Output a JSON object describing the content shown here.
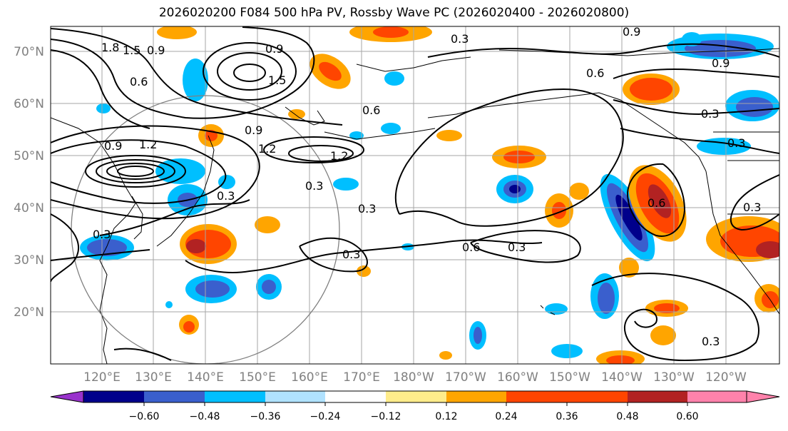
{
  "title": "2026020200 F084 500 hPa PV, Rossby Wave PC (2026020400 - 2026020800)",
  "lat_labels": [
    "70°N",
    "60°N",
    "50°N",
    "40°N",
    "30°N",
    "20°N"
  ],
  "lon_labels": [
    "120°E",
    "130°E",
    "140°E",
    "150°E",
    "160°E",
    "170°E",
    "180°W",
    "170°W",
    "160°W",
    "150°W",
    "140°W",
    "130°W",
    "120°W"
  ],
  "contour_labels": [
    "1.8",
    "1.5",
    "0.9",
    "0.6",
    "0.9",
    "1.5",
    "0.3",
    "0.9",
    "0.6",
    "0.9",
    "0.6",
    "0.3",
    "0.9",
    "1.2",
    "0.9",
    "1.2",
    "1.2",
    "0.3",
    "0.3",
    "0.3",
    "0.6",
    "0.3",
    "0.3",
    "0.6",
    "0.3",
    "0.3",
    "0.3",
    "0.3"
  ],
  "colorbar": {
    "tick_labels": [
      "−0.60",
      "−0.48",
      "−0.36",
      "−0.24",
      "−0.12",
      "0.12",
      "0.24",
      "0.36",
      "0.48",
      "0.60"
    ],
    "colors": [
      "#9932cc",
      "#00008b",
      "#3a5fcd",
      "#00bfff",
      "#b0e2ff",
      "#ffffff",
      "#ffec8b",
      "#ffa500",
      "#ff4500",
      "#b22222",
      "#ff82ab"
    ]
  }
}
